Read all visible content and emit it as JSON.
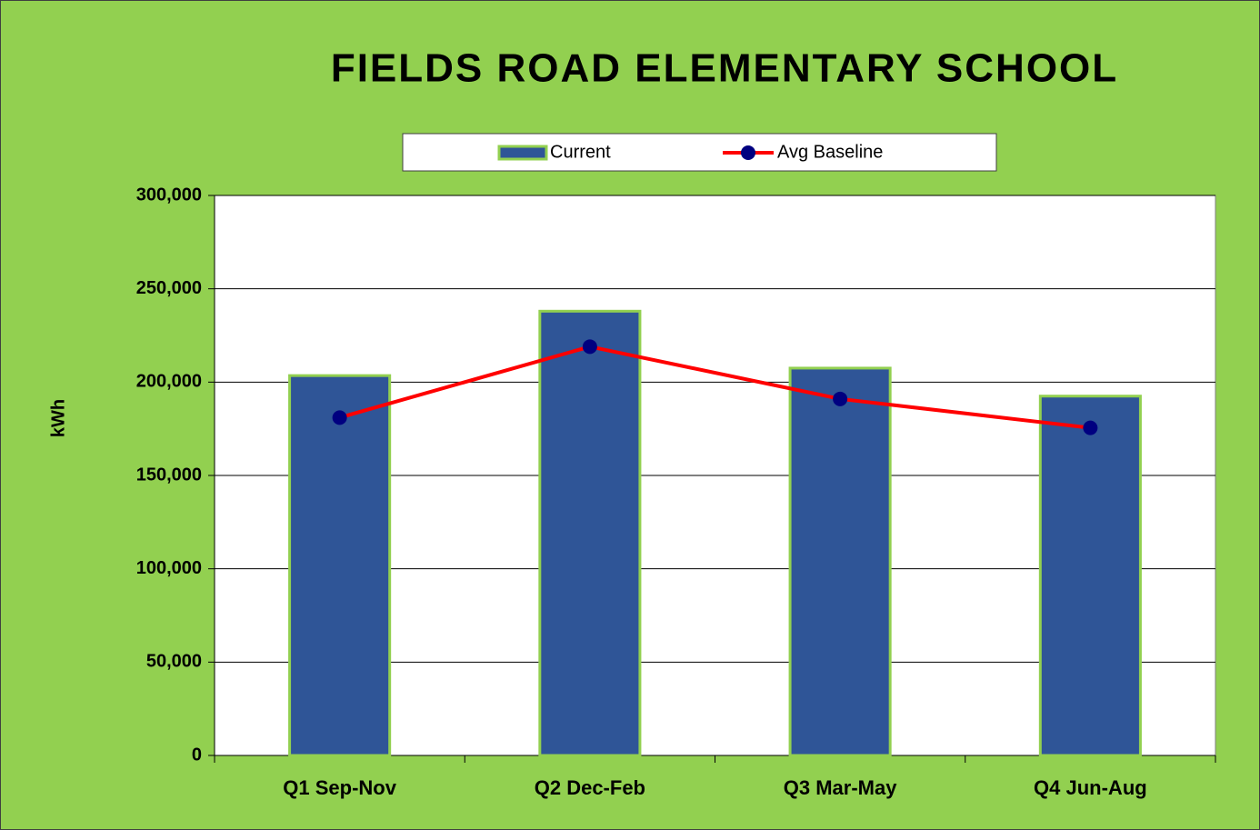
{
  "chart_data": {
    "type": "bar_line",
    "title": "FIELDS ROAD ELEMENTARY SCHOOL",
    "ylabel": "kWh",
    "categories": [
      "Q1 Sep-Nov",
      "Q2 Dec-Feb",
      "Q3 Mar-May",
      "Q4 Jun-Aug"
    ],
    "series": [
      {
        "name": "Current",
        "type": "bar",
        "color": "#2f5597",
        "values": [
          203500,
          238000,
          207500,
          192500
        ]
      },
      {
        "name": "Avg Baseline",
        "type": "line",
        "color": "#ff0000",
        "marker_color": "#000080",
        "values": [
          181000,
          219000,
          191000,
          175500
        ]
      }
    ],
    "ylim": [
      0,
      300000
    ],
    "yticks": [
      0,
      {
        "value": 50000,
        "label": "50,000"
      },
      {
        "value": 100000,
        "label": "100,000"
      },
      {
        "value": 150000,
        "label": "150,000"
      },
      {
        "value": 200000,
        "label": "200,000"
      },
      {
        "value": 250000,
        "label": "250,000"
      },
      {
        "value": 300000,
        "label": "300,000"
      }
    ],
    "grid": true,
    "legend": "top"
  }
}
